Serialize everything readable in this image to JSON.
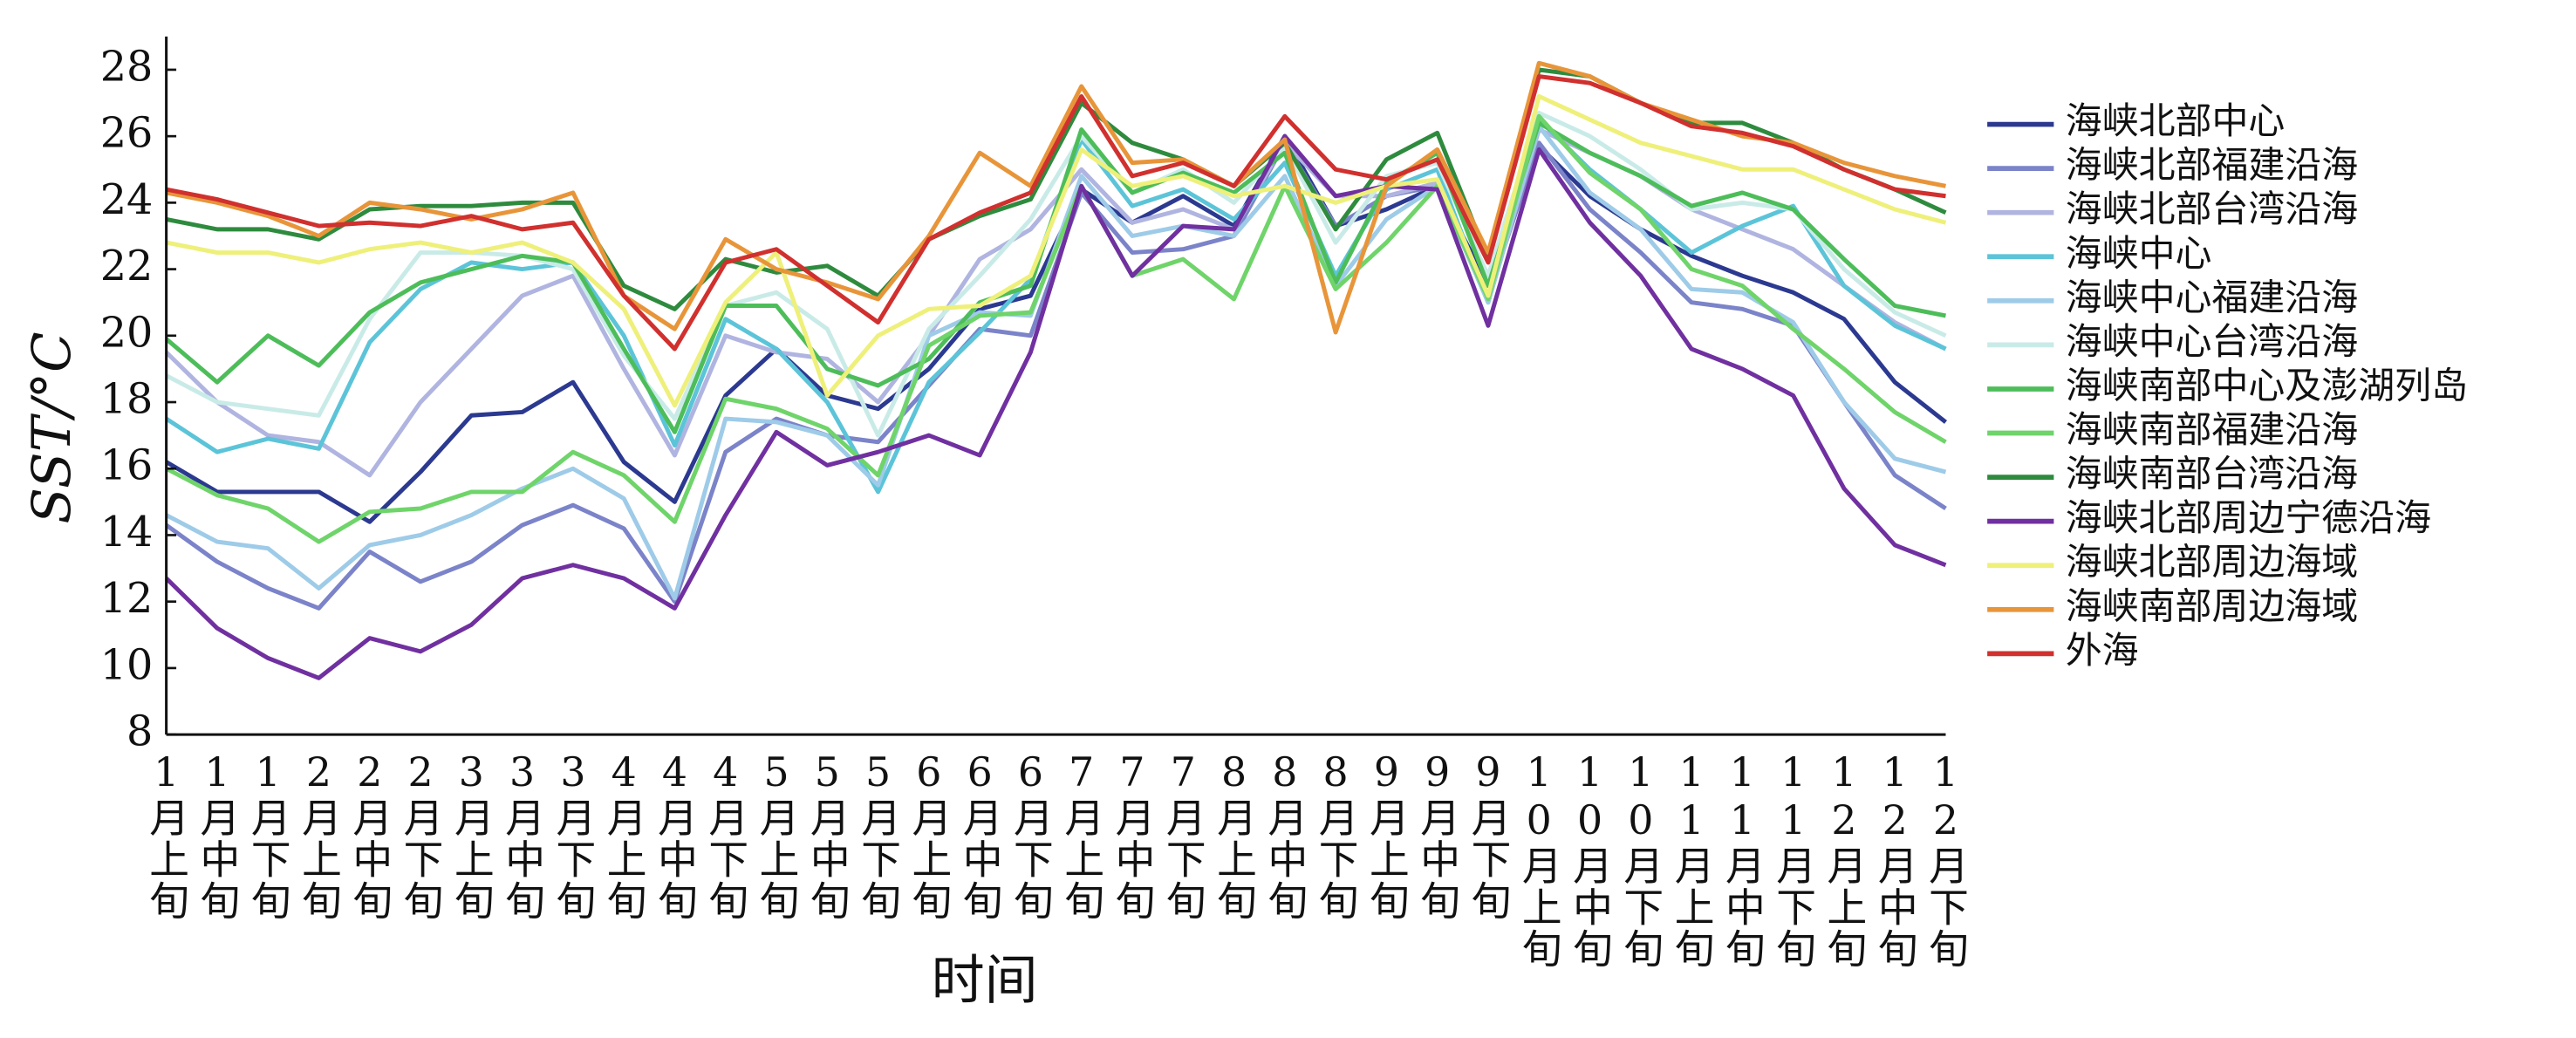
{
  "chart_data": {
    "type": "line",
    "y_label": "SST/°C",
    "x_label": "时间",
    "categories": [
      "1月上旬",
      "1月中旬",
      "1月下旬",
      "2月上旬",
      "2月中旬",
      "2月下旬",
      "3月上旬",
      "3月中旬",
      "3月下旬",
      "4月上旬",
      "4月中旬",
      "4月下旬",
      "5月上旬",
      "5月中旬",
      "5月下旬",
      "6月上旬",
      "6月中旬",
      "6月下旬",
      "7月上旬",
      "7月中旬",
      "7月下旬",
      "8月上旬",
      "8月中旬",
      "8月下旬",
      "9月上旬",
      "9月中旬",
      "9月下旬",
      "10月上旬",
      "10月中旬",
      "10月下旬",
      "11月上旬",
      "11月中旬",
      "11月下旬",
      "12月上旬",
      "12月中旬",
      "12月下旬"
    ],
    "ylim": [
      8,
      29
    ],
    "yticks": [
      8,
      10,
      12,
      14,
      16,
      18,
      20,
      22,
      24,
      26,
      28
    ],
    "series": [
      {
        "name": "海峡北部中心",
        "color": "#2b3990",
        "values": [
          16.2,
          15.3,
          15.3,
          15.3,
          14.4,
          15.9,
          17.6,
          17.7,
          18.6,
          16.2,
          15.0,
          18.2,
          19.6,
          18.2,
          17.8,
          19.0,
          20.8,
          21.2,
          24.4,
          23.4,
          24.2,
          23.3,
          26.0,
          23.3,
          23.8,
          24.5,
          21.5,
          25.7,
          24.2,
          23.2,
          22.4,
          21.8,
          21.3,
          20.5,
          18.6,
          17.4
        ]
      },
      {
        "name": "海峡北部福建沿海",
        "color": "#7b83c9",
        "values": [
          14.3,
          13.2,
          12.4,
          11.8,
          13.5,
          12.6,
          13.2,
          14.3,
          14.9,
          14.2,
          12.0,
          16.5,
          17.5,
          17.0,
          16.8,
          18.5,
          20.2,
          20.0,
          24.3,
          22.5,
          22.6,
          23.0,
          25.8,
          23.3,
          24.2,
          24.5,
          21.2,
          25.8,
          23.8,
          22.5,
          21.0,
          20.8,
          20.3,
          18.0,
          15.8,
          14.8
        ]
      },
      {
        "name": "海峡北部台湾沿海",
        "color": "#b0b4e0",
        "values": [
          19.5,
          18.0,
          17.0,
          16.8,
          15.8,
          18.0,
          19.6,
          21.2,
          21.8,
          19.0,
          16.4,
          20.0,
          19.5,
          19.3,
          18.0,
          20.0,
          22.3,
          23.2,
          25.0,
          23.4,
          23.8,
          23.2,
          25.8,
          24.2,
          24.2,
          24.6,
          21.0,
          26.2,
          25.5,
          24.8,
          23.8,
          23.2,
          22.6,
          21.5,
          20.4,
          19.6
        ]
      },
      {
        "name": "海峡中心",
        "color": "#5cc4d8",
        "values": [
          17.5,
          16.5,
          16.9,
          16.6,
          19.8,
          21.4,
          22.2,
          22.0,
          22.2,
          20.0,
          16.7,
          20.5,
          19.6,
          18.0,
          15.3,
          18.6,
          20.1,
          21.7,
          25.9,
          23.9,
          24.4,
          23.5,
          25.2,
          21.8,
          24.4,
          25.0,
          21.0,
          26.5,
          25.0,
          23.8,
          22.5,
          23.3,
          23.9,
          21.5,
          20.3,
          19.6
        ]
      },
      {
        "name": "海峡中心福建沿海",
        "color": "#9ecbe8",
        "values": [
          14.6,
          13.8,
          13.6,
          12.4,
          13.7,
          14.0,
          14.6,
          15.4,
          16.0,
          15.1,
          12.1,
          17.5,
          17.4,
          17.0,
          15.5,
          20.0,
          20.7,
          20.6,
          24.8,
          23.0,
          23.3,
          23.0,
          24.8,
          21.5,
          23.5,
          24.5,
          21.0,
          26.3,
          24.3,
          23.2,
          21.4,
          21.3,
          20.4,
          18.0,
          16.3,
          15.9
        ]
      },
      {
        "name": "海峡中心台湾沿海",
        "color": "#c9ebe8",
        "values": [
          18.8,
          18.0,
          17.8,
          17.6,
          20.5,
          22.5,
          22.5,
          22.4,
          22.0,
          19.4,
          17.5,
          20.9,
          21.3,
          20.2,
          17.0,
          20.2,
          21.8,
          23.5,
          26.0,
          24.3,
          25.0,
          24.0,
          25.7,
          22.8,
          24.8,
          25.2,
          21.8,
          26.7,
          26.0,
          25.0,
          23.8,
          24.0,
          23.8,
          22.0,
          20.7,
          20.0
        ]
      },
      {
        "name": "海峡南部中心及澎湖列岛",
        "color": "#4dbd5a",
        "values": [
          19.9,
          18.6,
          20.0,
          19.1,
          20.7,
          21.6,
          22.0,
          22.4,
          22.2,
          19.6,
          17.1,
          20.9,
          20.9,
          19.0,
          18.5,
          19.3,
          21.0,
          21.5,
          26.2,
          24.3,
          24.9,
          24.3,
          25.5,
          21.6,
          24.6,
          25.5,
          21.5,
          26.4,
          25.5,
          24.8,
          23.9,
          24.3,
          23.8,
          22.3,
          20.9,
          20.6
        ]
      },
      {
        "name": "海峡南部福建沿海",
        "color": "#6fd46a",
        "values": [
          16.0,
          15.2,
          14.8,
          13.8,
          14.7,
          14.8,
          15.3,
          15.3,
          16.5,
          15.8,
          14.4,
          18.1,
          17.8,
          17.2,
          15.8,
          19.7,
          20.6,
          20.7,
          24.5,
          21.8,
          22.3,
          21.1,
          24.5,
          21.4,
          22.8,
          24.5,
          21.1,
          26.6,
          24.9,
          23.8,
          22.0,
          21.5,
          20.2,
          19.0,
          17.7,
          16.8
        ]
      },
      {
        "name": "海峡南部台湾沿海",
        "color": "#2e8b3e",
        "values": [
          23.5,
          23.2,
          23.2,
          22.9,
          23.8,
          23.9,
          23.9,
          24.0,
          24.0,
          21.5,
          20.8,
          22.3,
          21.9,
          22.1,
          21.2,
          22.9,
          23.6,
          24.1,
          27.0,
          25.8,
          25.3,
          24.5,
          25.8,
          23.2,
          25.3,
          26.1,
          22.3,
          28.0,
          27.8,
          27.0,
          26.4,
          26.4,
          25.8,
          25.0,
          24.4,
          23.7
        ]
      },
      {
        "name": "海峡北部周边宁德沿海",
        "color": "#7030a0",
        "values": [
          12.7,
          11.2,
          10.3,
          9.7,
          10.9,
          10.5,
          11.3,
          12.7,
          13.1,
          12.7,
          11.8,
          14.6,
          17.1,
          16.1,
          16.5,
          17.0,
          16.4,
          19.5,
          24.5,
          21.8,
          23.3,
          23.2,
          26.0,
          24.2,
          24.5,
          24.4,
          20.3,
          25.6,
          23.4,
          21.8,
          19.6,
          19.0,
          18.2,
          15.4,
          13.7,
          13.1
        ]
      },
      {
        "name": "海峡北部周边海域",
        "color": "#eef07a",
        "values": [
          22.8,
          22.5,
          22.5,
          22.2,
          22.6,
          22.8,
          22.5,
          22.8,
          22.2,
          20.8,
          17.9,
          21.0,
          22.5,
          18.2,
          20.0,
          20.8,
          20.9,
          21.8,
          25.6,
          24.5,
          24.8,
          24.2,
          24.5,
          24.0,
          24.5,
          24.7,
          21.2,
          27.2,
          26.5,
          25.8,
          25.4,
          25.0,
          25.0,
          24.4,
          23.8,
          23.4
        ]
      },
      {
        "name": "海峡南部周边海域",
        "color": "#e8953a",
        "values": [
          24.3,
          24.0,
          23.6,
          23.0,
          24.0,
          23.8,
          23.5,
          23.8,
          24.3,
          21.2,
          20.2,
          22.9,
          22.0,
          21.6,
          21.1,
          23.0,
          25.5,
          24.5,
          27.5,
          25.2,
          25.3,
          24.5,
          25.9,
          20.1,
          24.5,
          25.6,
          22.5,
          28.2,
          27.8,
          27.0,
          26.5,
          26.0,
          25.8,
          25.2,
          24.8,
          24.5
        ]
      },
      {
        "name": "外海",
        "color": "#d0302e",
        "values": [
          24.4,
          24.1,
          23.7,
          23.3,
          23.4,
          23.3,
          23.6,
          23.2,
          23.4,
          21.2,
          19.6,
          22.2,
          22.6,
          21.5,
          20.4,
          22.9,
          23.7,
          24.3,
          27.2,
          24.8,
          25.2,
          24.5,
          26.6,
          25.0,
          24.7,
          25.3,
          22.2,
          27.8,
          27.6,
          27.0,
          26.3,
          26.1,
          25.7,
          25.0,
          24.4,
          24.2
        ]
      }
    ]
  }
}
